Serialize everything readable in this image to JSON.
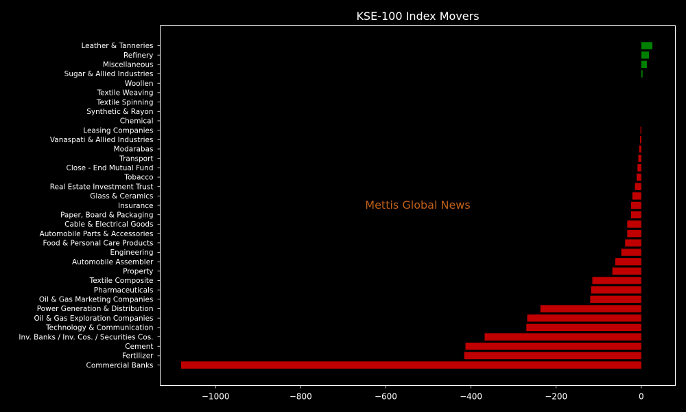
{
  "chart_data": {
    "type": "bar",
    "orientation": "horizontal",
    "title": "KSE-100 Index Movers",
    "watermark": "Mettis Global News",
    "xlabel": "",
    "ylabel": "",
    "xlim": [
      -1130,
      80
    ],
    "xticks": [
      -1000,
      -800,
      -600,
      -400,
      -200,
      0
    ],
    "xtick_labels": [
      "−1000",
      "−800",
      "−600",
      "−400",
      "−200",
      "0"
    ],
    "grid": false,
    "colors": {
      "positive": "#008000",
      "negative": "#c00000",
      "background": "#000000",
      "watermark": "#c0601a"
    },
    "categories": [
      "Leather & Tanneries",
      "Refinery",
      "Miscellaneous",
      "Sugar & Allied Industries",
      "Woollen",
      "Textile Weaving",
      "Textile Spinning",
      "Synthetic & Rayon",
      "Chemical",
      "Leasing Companies",
      "Vanaspati & Allied Industries",
      "Modarabas",
      "Transport",
      "Close - End Mutual Fund",
      "Tobacco",
      "Real Estate Investment Trust",
      "Glass & Ceramics",
      "Insurance",
      "Paper, Board & Packaging",
      "Cable & Electrical Goods",
      "Automobile Parts & Accessories",
      "Food & Personal Care Products",
      "Engineering",
      "Automobile Assembler",
      "Property",
      "Textile Composite",
      "Pharmaceuticals",
      "Oil & Gas Marketing Companies",
      "Power Generation & Distribution",
      "Oil & Gas Exploration Companies",
      "Technology & Communication",
      "Inv. Banks / Inv. Cos. / Securities Cos.",
      "Cement",
      "Fertilizer",
      "Commercial Banks"
    ],
    "values": [
      26,
      18,
      13,
      3,
      0,
      0,
      0,
      0,
      0,
      -2,
      -3,
      -5,
      -7,
      -9,
      -11,
      -15,
      -21,
      -24,
      -24,
      -33,
      -33,
      -38,
      -47,
      -61,
      -68,
      -115,
      -118,
      -120,
      -237,
      -268,
      -270,
      -368,
      -413,
      -416,
      -1081
    ]
  }
}
